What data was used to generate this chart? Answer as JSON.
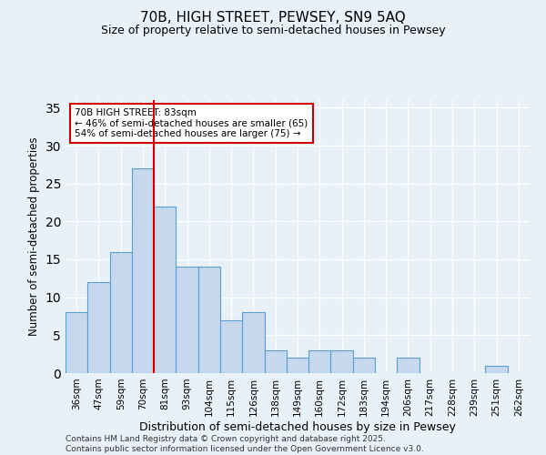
{
  "title1": "70B, HIGH STREET, PEWSEY, SN9 5AQ",
  "title2": "Size of property relative to semi-detached houses in Pewsey",
  "xlabel": "Distribution of semi-detached houses by size in Pewsey",
  "ylabel": "Number of semi-detached properties",
  "categories": [
    "36sqm",
    "47sqm",
    "59sqm",
    "70sqm",
    "81sqm",
    "93sqm",
    "104sqm",
    "115sqm",
    "126sqm",
    "138sqm",
    "149sqm",
    "160sqm",
    "172sqm",
    "183sqm",
    "194sqm",
    "206sqm",
    "217sqm",
    "228sqm",
    "239sqm",
    "251sqm",
    "262sqm"
  ],
  "values": [
    8,
    12,
    16,
    27,
    22,
    14,
    14,
    7,
    8,
    3,
    2,
    3,
    3,
    2,
    0,
    2,
    0,
    0,
    0,
    1,
    0
  ],
  "bar_color": "#c5d8ed",
  "bar_edge_color": "#5a9fd4",
  "background_color": "#e8f0f8",
  "grid_color": "#ffffff",
  "annotation_text": "70B HIGH STREET: 83sqm\n← 46% of semi-detached houses are smaller (65)\n54% of semi-detached houses are larger (75) →",
  "annotation_box_color": "#ffffff",
  "annotation_box_edge": "#cc0000",
  "ylim": [
    0,
    36
  ],
  "yticks": [
    0,
    5,
    10,
    15,
    20,
    25,
    30,
    35
  ],
  "footer1": "Contains HM Land Registry data © Crown copyright and database right 2025.",
  "footer2": "Contains public sector information licensed under the Open Government Licence v3.0."
}
